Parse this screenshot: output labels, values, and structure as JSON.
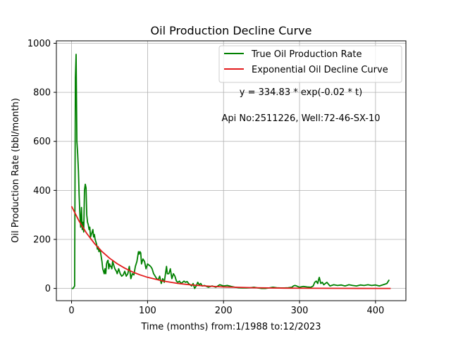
{
  "chart_data": {
    "type": "line",
    "title": "Oil Production Decline Curve",
    "xlabel": "Time (months) from:1/1988 to:12/2023",
    "ylabel": "Oil Production Rate (bbl/month)",
    "xlim": [
      -20,
      440
    ],
    "ylim": [
      -50,
      1010
    ],
    "xticks": [
      0,
      100,
      200,
      300,
      400
    ],
    "yticks": [
      0,
      200,
      400,
      600,
      800,
      1000
    ],
    "grid": true,
    "legend_position": "top-right",
    "annotations": [
      "y = 334.83 * exp(-0.02 * t)",
      "Api No:2511226, Well:72-46-SX-10"
    ],
    "series": [
      {
        "name": "True Oil Production Rate",
        "color": "#008000",
        "x": [
          0,
          1,
          2,
          3,
          4,
          5,
          6,
          7,
          8,
          9,
          10,
          11,
          12,
          13,
          14,
          15,
          16,
          17,
          18,
          19,
          20,
          21,
          22,
          23,
          24,
          25,
          26,
          27,
          28,
          29,
          30,
          31,
          32,
          33,
          34,
          35,
          36,
          37,
          38,
          39,
          40,
          41,
          42,
          43,
          44,
          45,
          46,
          47,
          48,
          49,
          50,
          51,
          52,
          53,
          54,
          55,
          56,
          57,
          58,
          59,
          60,
          62,
          64,
          66,
          68,
          70,
          72,
          74,
          76,
          78,
          80,
          82,
          84,
          86,
          88,
          89,
          90,
          91,
          92,
          94,
          96,
          98,
          100,
          102,
          104,
          106,
          108,
          110,
          112,
          114,
          116,
          118,
          120,
          122,
          124,
          125,
          126,
          128,
          130,
          132,
          134,
          136,
          138,
          140,
          142,
          144,
          146,
          148,
          150,
          152,
          154,
          156,
          158,
          160,
          162,
          164,
          166,
          168,
          170,
          172,
          175,
          180,
          185,
          190,
          195,
          200,
          205,
          210,
          215,
          220,
          225,
          230,
          235,
          240,
          245,
          250,
          255,
          260,
          265,
          270,
          275,
          280,
          285,
          290,
          292,
          294,
          296,
          300,
          305,
          310,
          315,
          318,
          320,
          322,
          324,
          325,
          326,
          328,
          330,
          332,
          334,
          336,
          340,
          345,
          350,
          355,
          360,
          365,
          370,
          375,
          380,
          385,
          390,
          395,
          400,
          405,
          410,
          415,
          418
        ],
        "values": [
          0,
          0,
          0,
          5,
          10,
          860,
          955,
          600,
          550,
          480,
          380,
          300,
          250,
          330,
          240,
          270,
          230,
          400,
          425,
          410,
          300,
          270,
          260,
          240,
          250,
          210,
          220,
          230,
          240,
          210,
          220,
          200,
          190,
          180,
          160,
          170,
          150,
          160,
          150,
          130,
          110,
          80,
          70,
          60,
          80,
          60,
          100,
          110,
          115,
          80,
          100,
          90,
          90,
          80,
          110,
          100,
          90,
          80,
          75,
          70,
          60,
          80,
          60,
          50,
          55,
          70,
          50,
          60,
          90,
          40,
          60,
          55,
          90,
          110,
          150,
          140,
          150,
          145,
          100,
          120,
          110,
          80,
          100,
          95,
          90,
          80,
          60,
          50,
          40,
          35,
          50,
          20,
          40,
          25,
          70,
          90,
          60,
          60,
          80,
          40,
          60,
          50,
          30,
          25,
          30,
          20,
          25,
          30,
          25,
          28,
          20,
          15,
          10,
          20,
          0,
          10,
          25,
          15,
          20,
          10,
          12,
          5,
          10,
          5,
          15,
          10,
          12,
          8,
          5,
          3,
          2,
          2,
          3,
          5,
          2,
          0,
          0,
          2,
          5,
          3,
          2,
          2,
          3,
          5,
          10,
          12,
          10,
          5,
          8,
          6,
          5,
          10,
          25,
          30,
          20,
          35,
          45,
          20,
          25,
          15,
          20,
          25,
          10,
          15,
          12,
          14,
          10,
          15,
          12,
          10,
          14,
          12,
          15,
          12,
          14,
          10,
          15,
          20,
          35
        ]
      },
      {
        "name": "Exponential Oil Decline Curve",
        "color": "#e31a1c",
        "formula": "y = 334.83 * exp(-0.02 * t)",
        "x": [
          0,
          10,
          20,
          30,
          40,
          50,
          60,
          70,
          80,
          90,
          100,
          120,
          140,
          160,
          180,
          200,
          240,
          280,
          320,
          360,
          400,
          420
        ],
        "values": [
          334.83,
          274.1,
          224.4,
          183.7,
          150.5,
          123.2,
          100.8,
          82.6,
          67.6,
          55.3,
          45.3,
          30.4,
          20.4,
          13.6,
          9.2,
          6.1,
          2.8,
          1.2,
          0.6,
          0.3,
          0.1,
          0.1
        ]
      }
    ]
  }
}
